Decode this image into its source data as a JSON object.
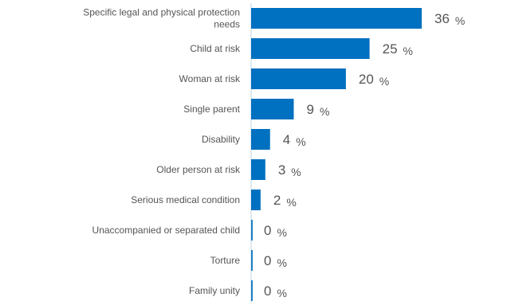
{
  "chart_data": {
    "type": "bar",
    "orientation": "horizontal",
    "categories": [
      [
        "Specific legal and physical protection",
        "needs"
      ],
      [
        "Child at risk"
      ],
      [
        "Woman at risk"
      ],
      [
        "Single parent"
      ],
      [
        "Disability"
      ],
      [
        "Older person at risk"
      ],
      [
        "Serious medical condition"
      ],
      [
        "Unaccompanied or separated child"
      ],
      [
        "Torture"
      ],
      [
        "Family unity"
      ]
    ],
    "values": [
      36,
      25,
      20,
      9,
      4,
      3,
      2,
      0,
      0,
      0
    ],
    "value_labels": [
      "36",
      "25",
      "20",
      "9",
      "4",
      "3",
      "2",
      "0",
      "0",
      "0"
    ],
    "unit": "%",
    "xlim": [
      0,
      36
    ],
    "bar_color": "#0070c0",
    "axis_color": "#bfd4e6",
    "grid": false,
    "legend": "none"
  }
}
